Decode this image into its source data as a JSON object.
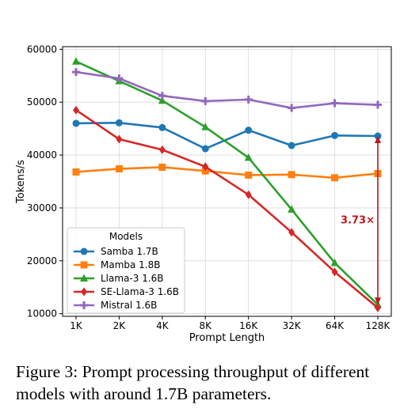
{
  "chart_data": {
    "type": "line",
    "categories": [
      "1K",
      "2K",
      "4K",
      "8K",
      "16K",
      "32K",
      "64K",
      "128K"
    ],
    "xlabel": "Prompt Length",
    "ylabel": "Tokens/s",
    "ylim": [
      9500,
      60500
    ],
    "yticks": [
      10000,
      20000,
      30000,
      40000,
      50000,
      60000
    ],
    "grid": true,
    "legend": {
      "title": "Models",
      "placement": "lower-left"
    },
    "series": [
      {
        "name": "Samba 1.7B",
        "color": "#1f77b4",
        "marker": "circle",
        "values": [
          46000,
          46100,
          45200,
          41200,
          44700,
          41800,
          43700,
          43600
        ]
      },
      {
        "name": "Mamba 1.8B",
        "color": "#ff7f0e",
        "marker": "square",
        "values": [
          36800,
          37400,
          37700,
          37000,
          36200,
          36300,
          35700,
          36500
        ]
      },
      {
        "name": "Llama-3 1.6B",
        "color": "#2ca02c",
        "marker": "triangle",
        "values": [
          57700,
          54000,
          50300,
          45300,
          39500,
          29700,
          19600,
          11700
        ]
      },
      {
        "name": "SE-Llama-3 1.6B",
        "color": "#d62728",
        "marker": "diamond",
        "values": [
          48500,
          43000,
          41000,
          37800,
          32500,
          25400,
          17900,
          11100
        ]
      },
      {
        "name": "Mistral 1.6B",
        "color": "#9467bd",
        "marker": "plus",
        "values": [
          55700,
          54500,
          51200,
          50200,
          50500,
          48900,
          49800,
          49500
        ]
      }
    ],
    "annotation": {
      "text": "3.73×",
      "color": "#c0141e",
      "x": "128K",
      "from": 11700,
      "to": 43600
    }
  },
  "caption": "Figure 3: Prompt processing throughput of different models with around 1.7B parameters."
}
